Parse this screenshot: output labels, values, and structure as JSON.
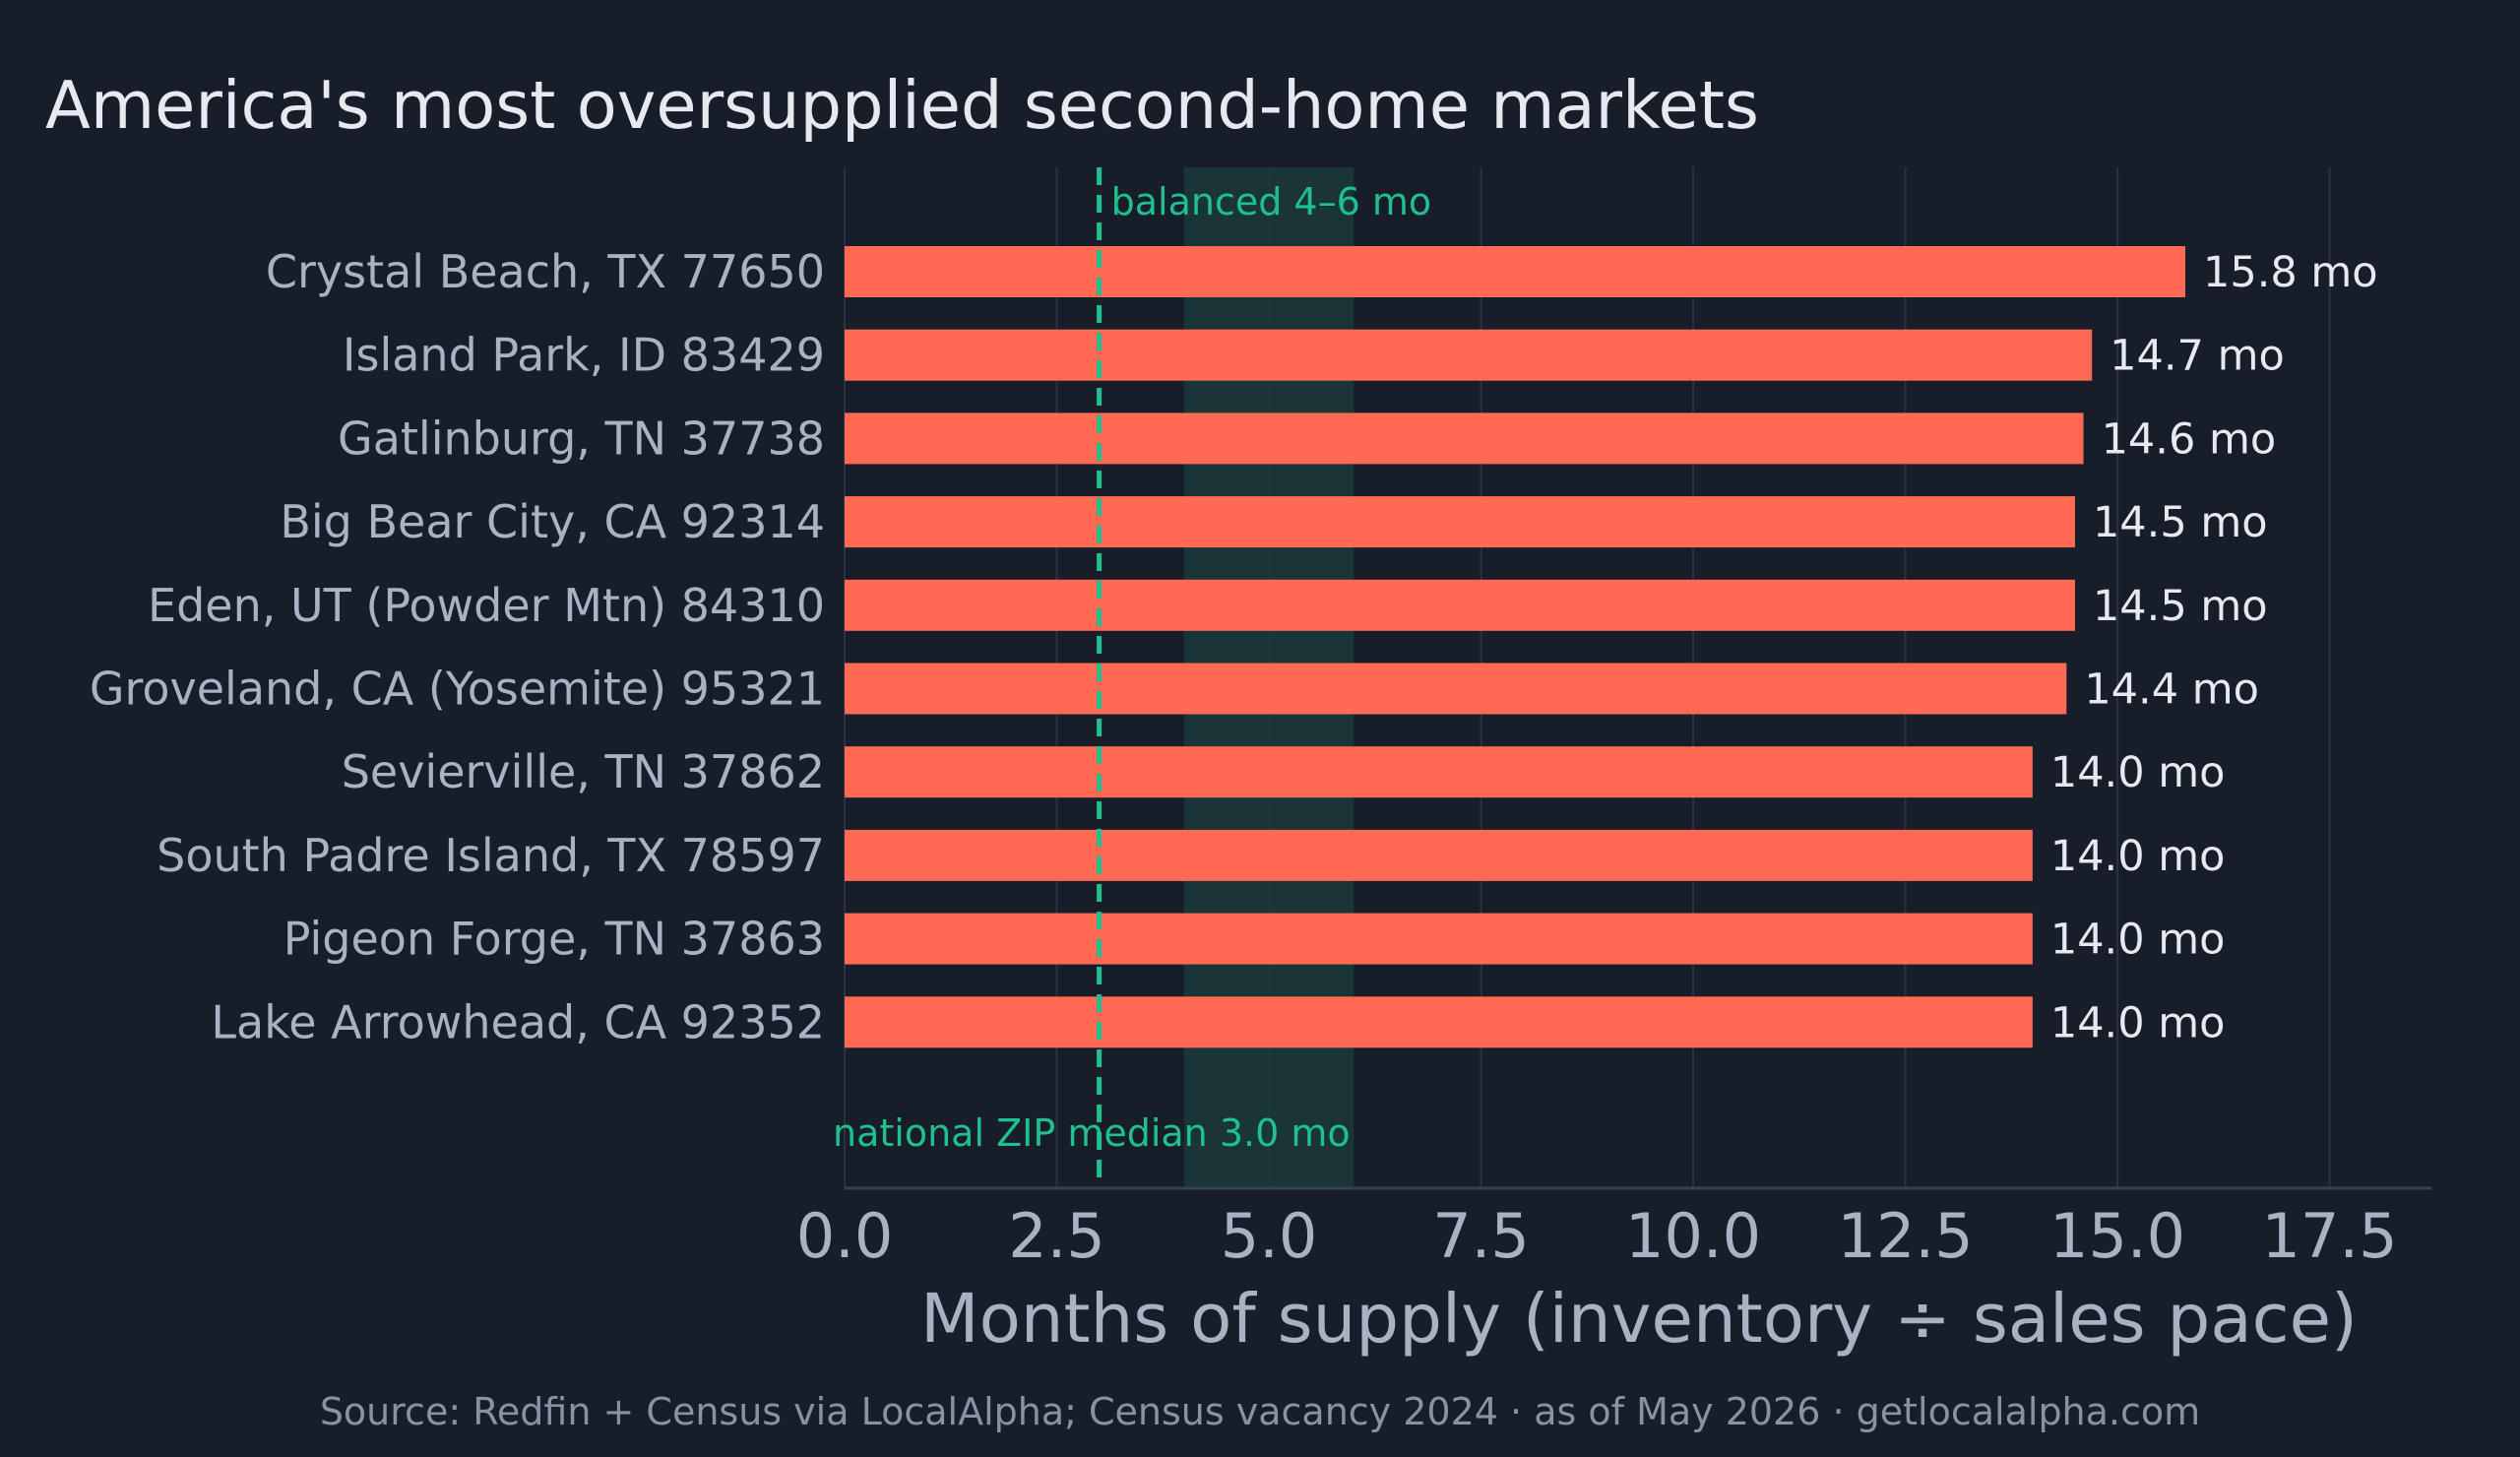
{
  "chart_data": {
    "type": "bar",
    "orientation": "horizontal",
    "title": "America's most oversupplied second-home markets",
    "xlabel": "Months of supply  (inventory ÷ sales pace)",
    "ylabel": "",
    "xlim": [
      0,
      18.7
    ],
    "xticks": [
      0,
      2.5,
      5,
      7.5,
      10,
      12.5,
      15,
      17.5
    ],
    "tick_labels": [
      "0.0",
      "2.5",
      "5.0",
      "7.5",
      "10.0",
      "12.5",
      "15.0",
      "17.5"
    ],
    "grid": true,
    "categories": [
      "Crystal Beach, TX 77650",
      "Island Park, ID 83429",
      "Gatlinburg, TN 37738",
      "Big Bear City, CA 92314",
      "Eden, UT (Powder Mtn) 84310",
      "Groveland, CA (Yosemite) 95321",
      "Sevierville, TN 37862",
      "South Padre Island, TX 78597",
      "Pigeon Forge, TN 37863",
      "Lake Arrowhead, CA 92352"
    ],
    "values": [
      15.8,
      14.7,
      14.6,
      14.5,
      14.5,
      14.4,
      14.0,
      14.0,
      14.0,
      14.0
    ],
    "value_labels": [
      "15.8 mo",
      "14.7 mo",
      "14.6 mo",
      "14.5 mo",
      "14.5 mo",
      "14.4 mo",
      "14.0 mo",
      "14.0 mo",
      "14.0 mo",
      "14.0 mo"
    ],
    "reference_line": {
      "value": 3.0,
      "label": "national ZIP median 3.0 mo"
    },
    "balanced_band": {
      "from": 4,
      "to": 6,
      "label": "balanced 4–6 mo"
    },
    "source": "Source: Redfin + Census via LocalAlpha; Census vacancy 2024  ·  as of May 2026  ·  getlocalalpha.com"
  },
  "colors": {
    "background": "#181d2a",
    "bar": "#ff6a55",
    "reference": "#1fbf8f",
    "band": "#1a3a3a",
    "grid": "#2c3242",
    "axis": "#3a4052"
  }
}
